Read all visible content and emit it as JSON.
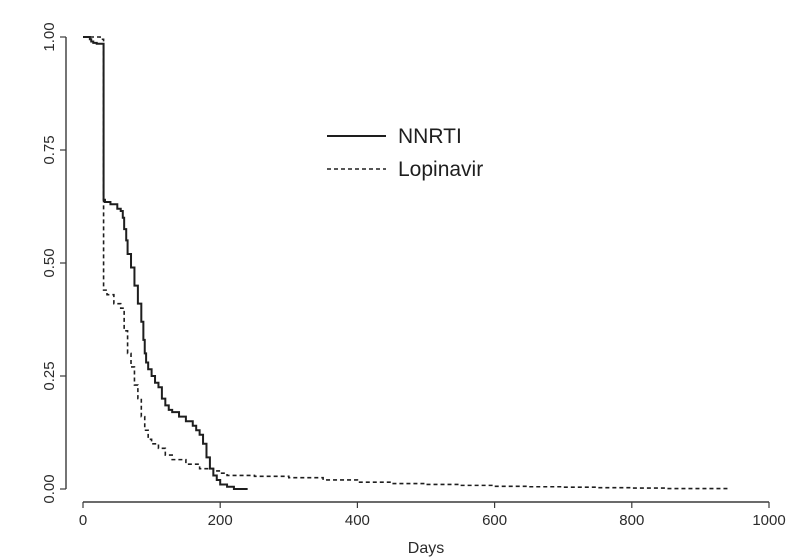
{
  "chart_data": {
    "type": "line",
    "title": "",
    "xlabel": "Days",
    "ylabel": "",
    "xlim": [
      0,
      1000
    ],
    "ylim": [
      0,
      1.0
    ],
    "x_ticks": [
      0,
      200,
      400,
      600,
      800,
      1000
    ],
    "y_ticks": [
      "0.00",
      "0.25",
      "0.50",
      "0.75",
      "1.00"
    ],
    "y_tick_values": [
      0,
      0.25,
      0.5,
      0.75,
      1.0
    ],
    "grid": false,
    "legend": {
      "placement": "top-center",
      "entries": [
        "NNRTI",
        "Lopinavir"
      ]
    },
    "series": [
      {
        "name": "NNRTI",
        "line_style": "solid",
        "x": [
          0,
          5,
          10,
          12,
          15,
          20,
          27,
          30,
          30,
          32,
          40,
          50,
          55,
          58,
          60,
          63,
          65,
          70,
          75,
          80,
          85,
          88,
          90,
          92,
          95,
          100,
          105,
          110,
          115,
          120,
          125,
          130,
          140,
          150,
          160,
          165,
          170,
          175,
          180,
          185,
          190,
          195,
          200,
          210,
          220,
          240
        ],
        "y": [
          1.0,
          1.0,
          0.995,
          0.99,
          0.987,
          0.985,
          0.985,
          0.985,
          0.64,
          0.635,
          0.63,
          0.62,
          0.615,
          0.6,
          0.575,
          0.55,
          0.52,
          0.49,
          0.45,
          0.41,
          0.37,
          0.33,
          0.3,
          0.28,
          0.265,
          0.25,
          0.235,
          0.225,
          0.2,
          0.185,
          0.175,
          0.17,
          0.16,
          0.15,
          0.14,
          0.13,
          0.12,
          0.1,
          0.07,
          0.045,
          0.03,
          0.02,
          0.01,
          0.005,
          0.0,
          0.0
        ]
      },
      {
        "name": "Lopinavir",
        "line_style": "dashed",
        "x": [
          0,
          15,
          25,
          30,
          30,
          35,
          45,
          55,
          60,
          65,
          70,
          75,
          80,
          85,
          90,
          95,
          100,
          110,
          120,
          130,
          150,
          170,
          190,
          200,
          210,
          250,
          300,
          350,
          400,
          450,
          500,
          550,
          600,
          650,
          700,
          750,
          800,
          850,
          900,
          940
        ],
        "y": [
          1.0,
          1.0,
          0.995,
          0.99,
          0.44,
          0.43,
          0.41,
          0.4,
          0.35,
          0.3,
          0.27,
          0.23,
          0.2,
          0.16,
          0.13,
          0.11,
          0.1,
          0.09,
          0.075,
          0.065,
          0.055,
          0.045,
          0.04,
          0.035,
          0.03,
          0.028,
          0.025,
          0.02,
          0.015,
          0.012,
          0.01,
          0.008,
          0.006,
          0.005,
          0.004,
          0.003,
          0.002,
          0.001,
          0.001,
          0.0
        ]
      }
    ]
  }
}
